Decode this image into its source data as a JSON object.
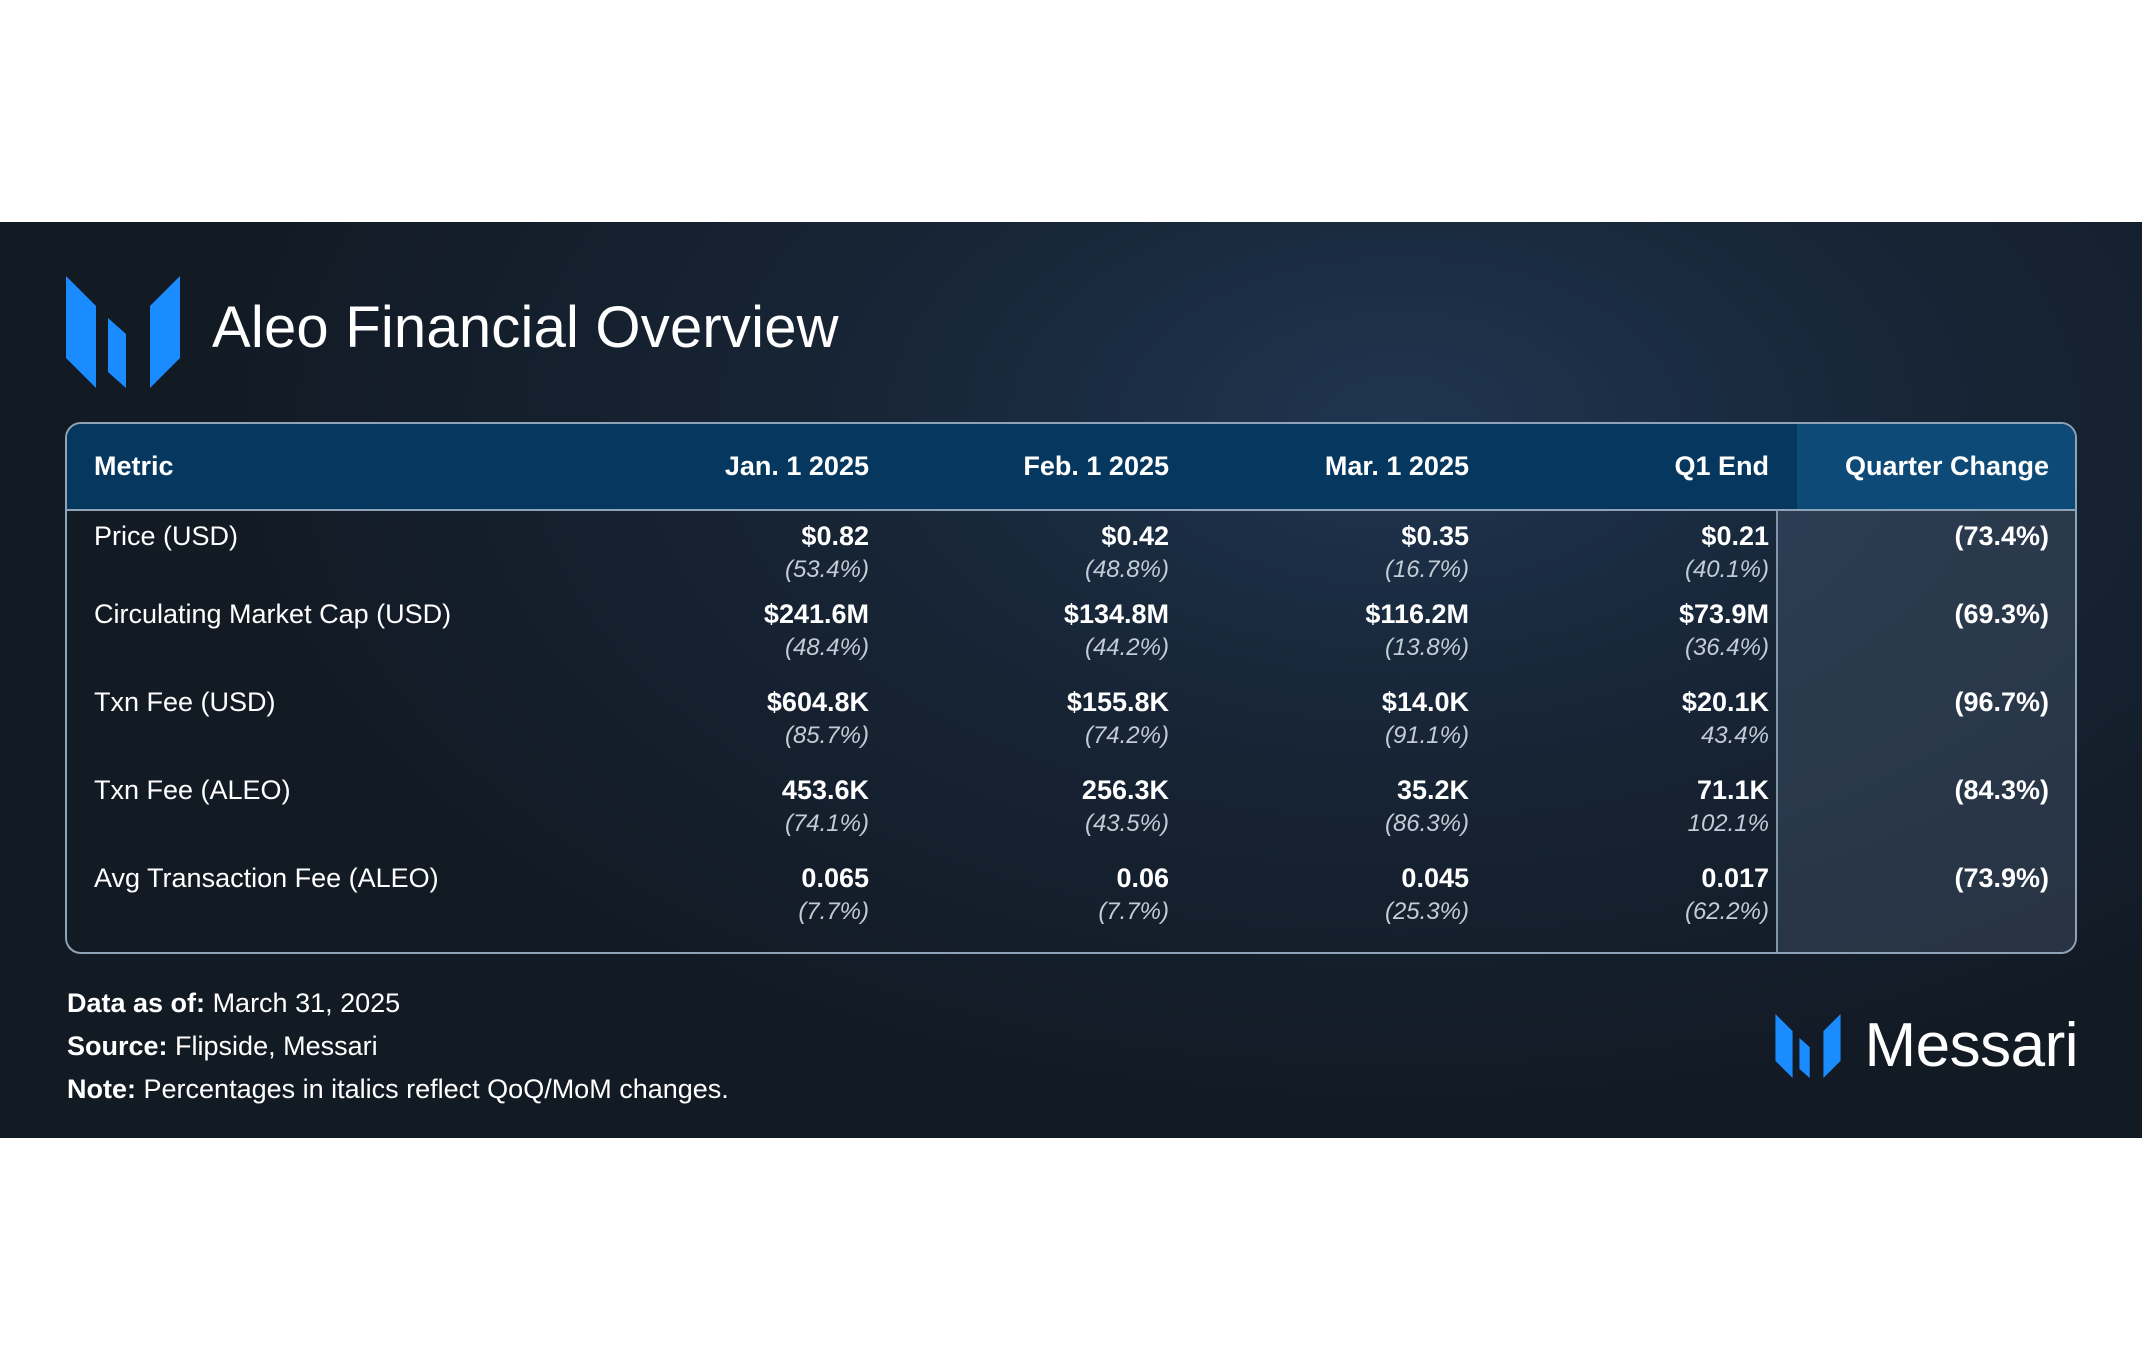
{
  "header": {
    "title": "Aleo Financial Overview"
  },
  "colors": {
    "accent": "#1a8cff",
    "header_bg": "#06375f",
    "banner_bg": "#152232"
  },
  "chart_data": {
    "type": "table",
    "columns": [
      "Metric",
      "Jan. 1 2025",
      "Feb. 1 2025",
      "Mar. 1 2025",
      "Q1 End",
      "Quarter Change"
    ],
    "rows": [
      {
        "metric": "Price (USD)",
        "values": [
          "$0.82",
          "$0.42",
          "$0.35",
          "$0.21"
        ],
        "changes": [
          "(53.4%)",
          "(48.8%)",
          "(16.7%)",
          "(40.1%)"
        ],
        "quarter_change": "(73.4%)"
      },
      {
        "metric": "Circulating Market Cap (USD)",
        "values": [
          "$241.6M",
          "$134.8M",
          "$116.2M",
          "$73.9M"
        ],
        "changes": [
          "(48.4%)",
          "(44.2%)",
          "(13.8%)",
          "(36.4%)"
        ],
        "quarter_change": "(69.3%)"
      },
      {
        "metric": "Txn Fee (USD)",
        "values": [
          "$604.8K",
          "$155.8K",
          "$14.0K",
          "$20.1K"
        ],
        "changes": [
          "(85.7%)",
          "(74.2%)",
          "(91.1%)",
          "43.4%"
        ],
        "quarter_change": "(96.7%)"
      },
      {
        "metric": "Txn Fee (ALEO)",
        "values": [
          "453.6K",
          "256.3K",
          "35.2K",
          "71.1K"
        ],
        "changes": [
          "(74.1%)",
          "(43.5%)",
          "(86.3%)",
          "102.1%"
        ],
        "quarter_change": "(84.3%)"
      },
      {
        "metric": "Avg Transaction Fee (ALEO)",
        "values": [
          "0.065",
          "0.06",
          "0.045",
          "0.017"
        ],
        "changes": [
          "(7.7%)",
          "(7.7%)",
          "(25.3%)",
          "(62.2%)"
        ],
        "quarter_change": "(73.9%)"
      }
    ]
  },
  "footer": {
    "data_as_of_label": "Data as of:",
    "data_as_of_value": "March 31, 2025",
    "source_label": "Source:",
    "source_value": "Flipside, Messari",
    "note_label": "Note:",
    "note_value": "Percentages in italics reflect QoQ/MoM changes."
  },
  "brand": {
    "name": "Messari",
    "icon": "messari-logo-icon"
  }
}
